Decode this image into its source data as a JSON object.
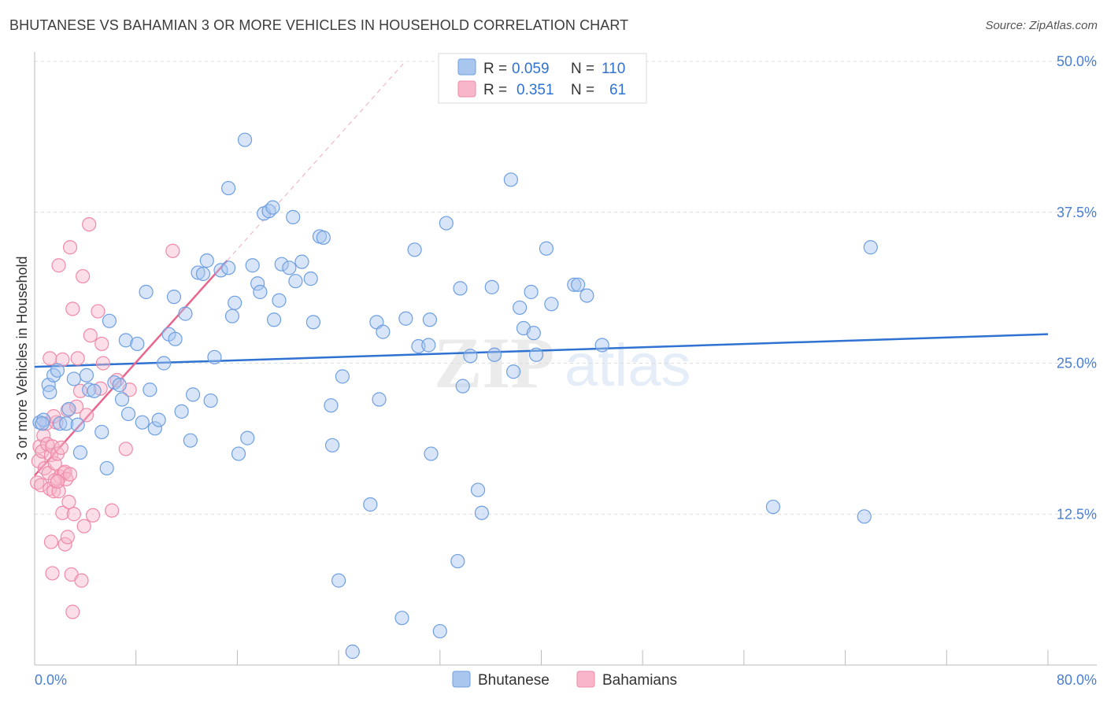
{
  "header": {
    "title": "BHUTANESE VS BAHAMIAN 3 OR MORE VEHICLES IN HOUSEHOLD CORRELATION CHART",
    "source": "Source: ZipAtlas.com"
  },
  "colors": {
    "bhutanese_fill": "#a9c6ef",
    "bhutanese_stroke": "#6e9fe0",
    "bhutanese_line": "#2f72d1",
    "bahamians_fill": "#f7b6c9",
    "bahamians_stroke": "#ef8aa8",
    "bahamians_line": "#e8658d",
    "tick_text": "#4a7fd0",
    "grid": "#dcdcdc"
  },
  "stats_legend": {
    "rows": [
      {
        "r_label": "R =",
        "r_value": "0.059",
        "n_label": "N =",
        "n_value": "110"
      },
      {
        "r_label": "R =",
        "r_value": "0.351",
        "n_label": "N =",
        "n_value": "61"
      }
    ]
  },
  "watermark": {
    "zip": "ZIP",
    "atlas": "atlas"
  },
  "chart_data": {
    "type": "scatter",
    "title": "BHUTANESE VS BAHAMIAN 3 OR MORE VEHICLES IN HOUSEHOLD CORRELATION CHART",
    "xlabel": "",
    "ylabel": "3 or more Vehicles in Household",
    "xlim": [
      0,
      80
    ],
    "ylim": [
      0,
      50
    ],
    "x_tick_labels": [
      "0.0%",
      "80.0%"
    ],
    "y_ticks": [
      12.5,
      25.0,
      37.5,
      50.0
    ],
    "y_tick_labels": [
      "12.5%",
      "25.0%",
      "37.5%",
      "50.0%"
    ],
    "grid": true,
    "legend_position": "bottom-center",
    "series": [
      {
        "name": "Bhutanese",
        "R": 0.059,
        "N": 110,
        "trend": {
          "x0": 0,
          "y0": 24.7,
          "x1": 80,
          "y1": 27.4
        },
        "points": [
          [
            0.4,
            20.1
          ],
          [
            0.7,
            20.3
          ],
          [
            1.1,
            23.2
          ],
          [
            1.2,
            22.6
          ],
          [
            1.5,
            24.0
          ],
          [
            1.8,
            24.4
          ],
          [
            2.0,
            20.0
          ],
          [
            2.5,
            20.0
          ],
          [
            2.7,
            21.2
          ],
          [
            3.1,
            23.7
          ],
          [
            3.4,
            19.9
          ],
          [
            3.6,
            17.6
          ],
          [
            4.1,
            24.0
          ],
          [
            4.3,
            22.8
          ],
          [
            4.7,
            22.7
          ],
          [
            5.3,
            19.3
          ],
          [
            5.7,
            16.3
          ],
          [
            5.9,
            28.5
          ],
          [
            6.3,
            23.4
          ],
          [
            6.7,
            23.2
          ],
          [
            6.9,
            22.0
          ],
          [
            7.2,
            26.9
          ],
          [
            7.4,
            20.8
          ],
          [
            8.1,
            26.6
          ],
          [
            8.5,
            20.1
          ],
          [
            8.8,
            30.9
          ],
          [
            9.1,
            22.8
          ],
          [
            9.5,
            19.6
          ],
          [
            9.8,
            20.3
          ],
          [
            10.2,
            25.0
          ],
          [
            10.6,
            27.4
          ],
          [
            11.0,
            30.5
          ],
          [
            11.1,
            27.0
          ],
          [
            11.6,
            21.0
          ],
          [
            11.9,
            29.1
          ],
          [
            12.3,
            18.6
          ],
          [
            12.5,
            22.4
          ],
          [
            12.9,
            32.5
          ],
          [
            13.3,
            32.4
          ],
          [
            13.6,
            33.5
          ],
          [
            13.9,
            21.9
          ],
          [
            14.2,
            25.5
          ],
          [
            14.7,
            32.7
          ],
          [
            15.3,
            32.9
          ],
          [
            15.3,
            39.5
          ],
          [
            15.6,
            28.9
          ],
          [
            15.8,
            30.0
          ],
          [
            16.1,
            17.5
          ],
          [
            16.6,
            43.5
          ],
          [
            16.8,
            18.8
          ],
          [
            17.2,
            33.1
          ],
          [
            17.6,
            31.6
          ],
          [
            17.8,
            30.9
          ],
          [
            18.1,
            37.4
          ],
          [
            18.5,
            37.6
          ],
          [
            18.8,
            37.9
          ],
          [
            18.9,
            28.6
          ],
          [
            19.3,
            30.2
          ],
          [
            19.5,
            33.2
          ],
          [
            20.1,
            32.9
          ],
          [
            20.4,
            37.1
          ],
          [
            20.6,
            31.8
          ],
          [
            21.1,
            33.4
          ],
          [
            21.8,
            32.0
          ],
          [
            22.0,
            28.4
          ],
          [
            22.5,
            35.5
          ],
          [
            22.8,
            35.4
          ],
          [
            23.4,
            21.5
          ],
          [
            23.5,
            18.2
          ],
          [
            24.0,
            7.0
          ],
          [
            24.3,
            23.9
          ],
          [
            25.1,
            1.1
          ],
          [
            26.5,
            13.3
          ],
          [
            27.0,
            28.4
          ],
          [
            27.2,
            22.0
          ],
          [
            27.5,
            27.6
          ],
          [
            29.0,
            3.9
          ],
          [
            29.3,
            28.7
          ],
          [
            30.0,
            34.4
          ],
          [
            30.3,
            26.4
          ],
          [
            31.1,
            26.5
          ],
          [
            31.2,
            28.6
          ],
          [
            31.3,
            17.5
          ],
          [
            32.0,
            2.8
          ],
          [
            32.5,
            36.6
          ],
          [
            33.4,
            8.6
          ],
          [
            33.6,
            31.2
          ],
          [
            33.8,
            23.1
          ],
          [
            34.4,
            25.6
          ],
          [
            35.0,
            14.5
          ],
          [
            35.3,
            12.6
          ],
          [
            36.1,
            31.3
          ],
          [
            36.3,
            25.7
          ],
          [
            37.6,
            40.2
          ],
          [
            37.8,
            24.3
          ],
          [
            38.3,
            29.6
          ],
          [
            38.6,
            27.9
          ],
          [
            39.2,
            30.9
          ],
          [
            39.4,
            27.5
          ],
          [
            39.6,
            25.7
          ],
          [
            40.4,
            34.5
          ],
          [
            40.8,
            29.9
          ],
          [
            42.6,
            31.5
          ],
          [
            42.9,
            31.5
          ],
          [
            43.6,
            30.6
          ],
          [
            44.8,
            26.5
          ],
          [
            58.3,
            13.1
          ],
          [
            65.5,
            12.3
          ],
          [
            66.0,
            34.6
          ],
          [
            0.6,
            20.0
          ]
        ]
      },
      {
        "name": "Bahamians",
        "R": 0.351,
        "N": 61,
        "trend": {
          "x0": 0,
          "y0": 15.7,
          "x1": 15.2,
          "y1": 33.5
        },
        "extension": {
          "x0": 15.2,
          "y0": 33.5,
          "x1": 29.1,
          "y1": 49.8
        },
        "points": [
          [
            0.2,
            15.1
          ],
          [
            0.3,
            16.9
          ],
          [
            0.4,
            18.1
          ],
          [
            0.5,
            14.9
          ],
          [
            0.6,
            17.7
          ],
          [
            0.7,
            19.0
          ],
          [
            0.8,
            16.3
          ],
          [
            0.9,
            20.0
          ],
          [
            1.0,
            18.3
          ],
          [
            1.1,
            15.9
          ],
          [
            1.2,
            14.6
          ],
          [
            1.3,
            17.4
          ],
          [
            1.4,
            18.1
          ],
          [
            1.5,
            14.4
          ],
          [
            1.6,
            16.7
          ],
          [
            1.7,
            20.1
          ],
          [
            1.8,
            17.5
          ],
          [
            1.9,
            14.4
          ],
          [
            2.0,
            15.6
          ],
          [
            2.1,
            18.0
          ],
          [
            2.2,
            12.6
          ],
          [
            2.3,
            15.9
          ],
          [
            2.4,
            16.0
          ],
          [
            2.5,
            15.4
          ],
          [
            2.6,
            21.1
          ],
          [
            2.7,
            13.5
          ],
          [
            2.8,
            15.8
          ],
          [
            1.2,
            25.4
          ],
          [
            1.5,
            20.6
          ],
          [
            1.3,
            10.2
          ],
          [
            1.4,
            7.6
          ],
          [
            1.9,
            33.1
          ],
          [
            2.2,
            25.3
          ],
          [
            2.4,
            10.0
          ],
          [
            2.6,
            10.6
          ],
          [
            2.8,
            34.6
          ],
          [
            2.9,
            7.5
          ],
          [
            3.0,
            29.5
          ],
          [
            3.1,
            12.5
          ],
          [
            3.3,
            21.4
          ],
          [
            3.4,
            25.4
          ],
          [
            3.6,
            22.7
          ],
          [
            3.7,
            7.0
          ],
          [
            3.8,
            32.2
          ],
          [
            3.9,
            11.5
          ],
          [
            4.1,
            20.7
          ],
          [
            4.3,
            36.5
          ],
          [
            4.4,
            27.3
          ],
          [
            4.6,
            12.4
          ],
          [
            5.0,
            29.3
          ],
          [
            5.2,
            22.9
          ],
          [
            5.3,
            26.6
          ],
          [
            5.4,
            25.0
          ],
          [
            6.1,
            12.8
          ],
          [
            6.5,
            23.6
          ],
          [
            7.2,
            17.9
          ],
          [
            7.5,
            22.8
          ],
          [
            10.9,
            34.3
          ],
          [
            3.0,
            4.4
          ],
          [
            1.6,
            15.3
          ],
          [
            1.8,
            15.2
          ]
        ]
      }
    ]
  },
  "bottom_legend": {
    "items": [
      {
        "label": "Bhutanese"
      },
      {
        "label": "Bahamians"
      }
    ]
  }
}
